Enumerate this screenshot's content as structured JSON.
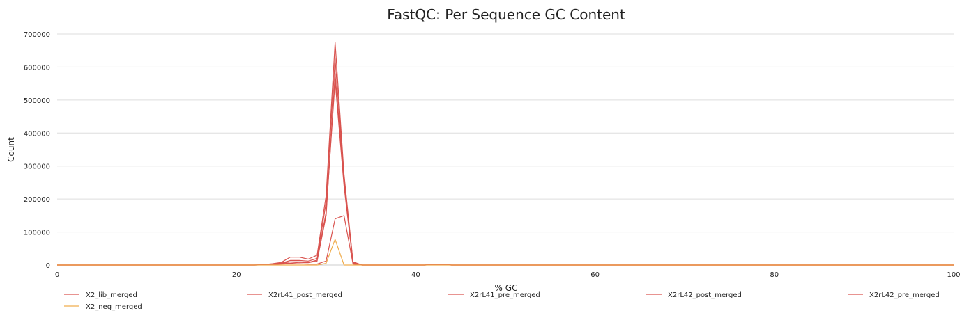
{
  "chart_data": {
    "type": "line",
    "title": "FastQC: Per Sequence GC Content",
    "xlabel": "% GC",
    "ylabel": "Count",
    "xlim": [
      0,
      100
    ],
    "ylim": [
      0,
      700000
    ],
    "xticks": [
      0,
      20,
      40,
      60,
      80,
      100
    ],
    "yticks": [
      0,
      100000,
      200000,
      300000,
      400000,
      500000,
      600000,
      700000
    ],
    "grid": true,
    "legend_position": "bottom",
    "series": [
      {
        "name": "X2_lib_merged",
        "color": "#d9534f",
        "points": [
          [
            0,
            0
          ],
          [
            22,
            0
          ],
          [
            23,
            500
          ],
          [
            24,
            2000
          ],
          [
            25,
            4000
          ],
          [
            26,
            6000
          ],
          [
            27,
            8000
          ],
          [
            28,
            7000
          ],
          [
            29,
            12000
          ],
          [
            30,
            150000
          ],
          [
            31,
            580000
          ],
          [
            32,
            250000
          ],
          [
            33,
            6000
          ],
          [
            34,
            0
          ],
          [
            41,
            0
          ],
          [
            42,
            1500
          ],
          [
            43,
            1500
          ],
          [
            44,
            0
          ],
          [
            100,
            0
          ]
        ]
      },
      {
        "name": "X2rL41_post_merged",
        "color": "#d9534f",
        "points": [
          [
            0,
            0
          ],
          [
            22,
            0
          ],
          [
            23,
            1000
          ],
          [
            24,
            4000
          ],
          [
            25,
            8000
          ],
          [
            26,
            24000
          ],
          [
            27,
            24000
          ],
          [
            28,
            18000
          ],
          [
            29,
            30000
          ],
          [
            30,
            210000
          ],
          [
            31,
            675000
          ],
          [
            32,
            275000
          ],
          [
            33,
            10000
          ],
          [
            34,
            0
          ],
          [
            41,
            0
          ],
          [
            42,
            3000
          ],
          [
            43,
            2000
          ],
          [
            44,
            0
          ],
          [
            100,
            0
          ]
        ]
      },
      {
        "name": "X2rL41_pre_merged",
        "color": "#d9534f",
        "points": [
          [
            0,
            0
          ],
          [
            22,
            0
          ],
          [
            23,
            800
          ],
          [
            24,
            3000
          ],
          [
            25,
            6000
          ],
          [
            26,
            14000
          ],
          [
            27,
            14000
          ],
          [
            28,
            12000
          ],
          [
            29,
            20000
          ],
          [
            30,
            190000
          ],
          [
            31,
            625000
          ],
          [
            32,
            265000
          ],
          [
            33,
            8000
          ],
          [
            34,
            0
          ],
          [
            41,
            0
          ],
          [
            42,
            2000
          ],
          [
            43,
            2000
          ],
          [
            44,
            0
          ],
          [
            100,
            0
          ]
        ]
      },
      {
        "name": "X2rL42_post_merged",
        "color": "#d9534f",
        "points": [
          [
            0,
            0
          ],
          [
            22,
            0
          ],
          [
            23,
            600
          ],
          [
            24,
            2500
          ],
          [
            25,
            5000
          ],
          [
            26,
            10000
          ],
          [
            27,
            10000
          ],
          [
            28,
            8000
          ],
          [
            29,
            15000
          ],
          [
            30,
            160000
          ],
          [
            31,
            560000
          ],
          [
            32,
            240000
          ],
          [
            33,
            6000
          ],
          [
            34,
            0
          ],
          [
            41,
            0
          ],
          [
            42,
            1500
          ],
          [
            43,
            1500
          ],
          [
            44,
            0
          ],
          [
            100,
            0
          ]
        ]
      },
      {
        "name": "X2rL42_pre_merged",
        "color": "#d9534f",
        "points": [
          [
            0,
            0
          ],
          [
            22,
            0
          ],
          [
            23,
            400
          ],
          [
            24,
            1500
          ],
          [
            25,
            3000
          ],
          [
            26,
            4000
          ],
          [
            27,
            4000
          ],
          [
            28,
            3000
          ],
          [
            29,
            3000
          ],
          [
            30,
            12000
          ],
          [
            31,
            140000
          ],
          [
            32,
            150000
          ],
          [
            33,
            3000
          ],
          [
            34,
            0
          ],
          [
            41,
            0
          ],
          [
            42,
            800
          ],
          [
            43,
            800
          ],
          [
            44,
            0
          ],
          [
            100,
            0
          ]
        ]
      },
      {
        "name": "X2_neg_merged",
        "color": "#f0ad4e",
        "points": [
          [
            0,
            0
          ],
          [
            29,
            0
          ],
          [
            30,
            5000
          ],
          [
            31,
            78000
          ],
          [
            32,
            0
          ],
          [
            100,
            0
          ]
        ]
      }
    ]
  }
}
